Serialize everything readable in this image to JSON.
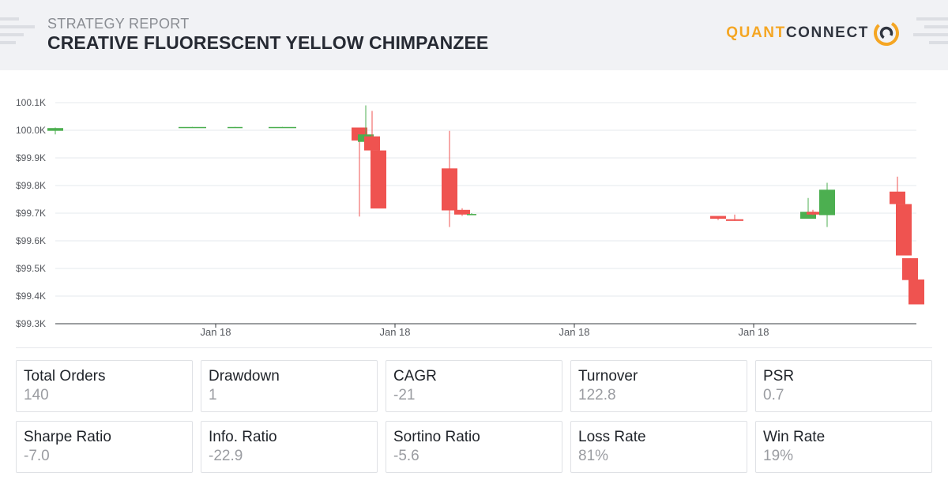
{
  "header": {
    "kicker": "STRATEGY REPORT",
    "title": "CREATIVE FLUORESCENT YELLOW CHIMPANZEE",
    "brand_primary": "QUANT",
    "brand_secondary": "CONNECT"
  },
  "colors": {
    "up": "#4caf50",
    "down": "#ef5350",
    "brand": "#f5a623",
    "grid": "#e6e8ec"
  },
  "chart_data": {
    "type": "candlestick",
    "title": "",
    "xlabel": "",
    "ylabel": "",
    "ylim": [
      99300,
      100100
    ],
    "y_ticks": [
      100100,
      100000,
      99900,
      99800,
      99700,
      99600,
      99500,
      99400,
      99300
    ],
    "y_tick_labels": [
      "100.1K",
      "100.0K",
      "$99.9K",
      "$99.8K",
      "$99.7K",
      "$99.6K",
      "$99.5K",
      "$99.4K",
      "$99.3K"
    ],
    "x_tick_labels": [
      "Jan 18",
      "Jan 18",
      "Jan 18",
      "Jan 18"
    ],
    "grid": true,
    "candles": [
      {
        "open": 99998,
        "close": 100008,
        "high": 100010,
        "low": 99985
      },
      {
        "open": 100010,
        "close": 100012,
        "high": 100012,
        "low": 100010
      },
      {
        "open": 100010,
        "close": 100012,
        "high": 100012,
        "low": 100010
      },
      {
        "open": 100010,
        "close": 100012,
        "high": 100012,
        "low": 100010
      },
      {
        "open": 100010,
        "close": 99963,
        "high": 100010,
        "low": 99688
      },
      {
        "open": 99958,
        "close": 99985,
        "high": 100090,
        "low": 99958
      },
      {
        "open": 99978,
        "close": 99927,
        "high": 100070,
        "low": 99925
      },
      {
        "open": 99927,
        "close": 99717,
        "high": 99927,
        "low": 99717
      },
      {
        "open": 99862,
        "close": 99710,
        "high": 99998,
        "low": 99650
      },
      {
        "open": 99712,
        "close": 99695,
        "high": 99718,
        "low": 99690
      },
      {
        "open": 99695,
        "close": 99697,
        "high": 99700,
        "low": 99693
      },
      {
        "open": 99690,
        "close": 99680,
        "high": 99690,
        "low": 99675
      },
      {
        "open": 99678,
        "close": 99672,
        "high": 99695,
        "low": 99672
      },
      {
        "open": 99680,
        "close": 99705,
        "high": 99755,
        "low": 99680
      },
      {
        "open": 99705,
        "close": 99695,
        "high": 99712,
        "low": 99693
      },
      {
        "open": 99693,
        "close": 99785,
        "high": 99810,
        "low": 99650
      },
      {
        "open": 99778,
        "close": 99733,
        "high": 99832,
        "low": 99733
      },
      {
        "open": 99733,
        "close": 99547,
        "high": 99733,
        "low": 99547
      },
      {
        "open": 99537,
        "close": 99458,
        "high": 99537,
        "low": 99458
      },
      {
        "open": 99460,
        "close": 99370,
        "high": 99460,
        "low": 99370
      }
    ]
  },
  "stats": [
    {
      "label": "Total Orders",
      "value": "140"
    },
    {
      "label": "Drawdown",
      "value": "1"
    },
    {
      "label": "CAGR",
      "value": "-21"
    },
    {
      "label": "Turnover",
      "value": "122.8"
    },
    {
      "label": "PSR",
      "value": "0.7"
    },
    {
      "label": "Sharpe Ratio",
      "value": "-7.0"
    },
    {
      "label": "Info. Ratio",
      "value": "-22.9"
    },
    {
      "label": "Sortino Ratio",
      "value": "-5.6"
    },
    {
      "label": "Loss Rate",
      "value": "81%"
    },
    {
      "label": "Win Rate",
      "value": "19%"
    }
  ]
}
